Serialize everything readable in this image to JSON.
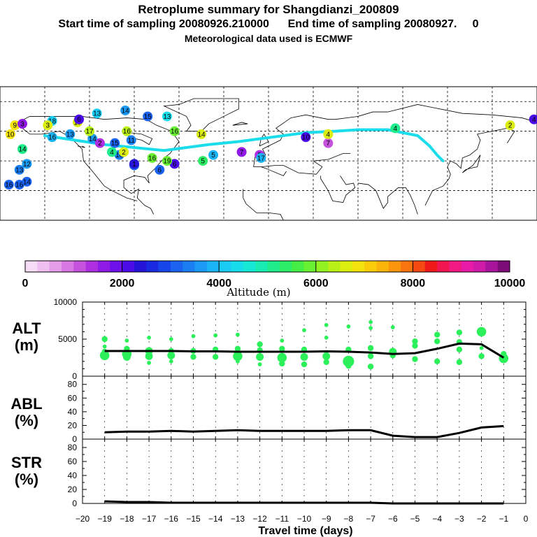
{
  "header": {
    "title": "Retroplume summary for Shangdianzi_200809",
    "sampling_line": "Start time of sampling 20080926.210000      End time of sampling 20080927.     0",
    "met_line": "Meteorological data used is ECMWF"
  },
  "colorbar": {
    "ticks": [
      "0",
      "2000",
      "4000",
      "6000",
      "8000",
      "10000"
    ],
    "label": "Altitude (m)",
    "colors": [
      "#f6dcf6",
      "#efbff0",
      "#e49be8",
      "#d878e2",
      "#c552dc",
      "#ad2fe0",
      "#8f1ae6",
      "#6e10ea",
      "#4a0de8",
      "#2514d8",
      "#1a2ae0",
      "#1646ea",
      "#1a62ef",
      "#1a7ef2",
      "#1a9af4",
      "#1ab4f5",
      "#1acbf3",
      "#17ddeb",
      "#15e8d4",
      "#19ecb2",
      "#1fec8a",
      "#2ced66",
      "#45ee45",
      "#6af033",
      "#92f222",
      "#b8f018",
      "#dced10",
      "#f4e20c",
      "#fbcc0a",
      "#fbb40a",
      "#fb960c",
      "#f8740e",
      "#f44a12",
      "#ee1a1a",
      "#f21650",
      "#f01a82",
      "#e81aa8",
      "#d01aa8",
      "#a8149c",
      "#7c0c78"
    ]
  },
  "map": {
    "trajectory_color": "#1adcea",
    "labels": [
      {
        "t": "13",
        "lon": -115,
        "lat": 72,
        "c": "#1acbf3"
      },
      {
        "t": "14",
        "lon": -96,
        "lat": 74,
        "c": "#1a9af4"
      },
      {
        "t": "15",
        "lon": -81,
        "lat": 70,
        "c": "#1a62ef"
      },
      {
        "t": "13",
        "lon": -68,
        "lat": 70,
        "c": "#17ddeb"
      },
      {
        "t": "9",
        "lon": -170,
        "lat": 64,
        "c": "#f4e20c"
      },
      {
        "t": "18",
        "lon": -145,
        "lat": 67,
        "c": "#1acbf3"
      },
      {
        "t": "17",
        "lon": -128,
        "lat": 66,
        "c": "#dced10"
      },
      {
        "t": "10",
        "lon": -173,
        "lat": 58,
        "c": "#f4e20c"
      },
      {
        "t": "16",
        "lon": -145,
        "lat": 56,
        "c": "#1ab4f5"
      },
      {
        "t": "13",
        "lon": -133,
        "lat": 58,
        "c": "#1a9af4"
      },
      {
        "t": "14",
        "lon": -118,
        "lat": 55,
        "c": "#1a9af4"
      },
      {
        "t": "15",
        "lon": -103,
        "lat": 52,
        "c": "#1a62ef"
      },
      {
        "t": "16",
        "lon": -100,
        "lat": 44,
        "c": "#1a7ef2"
      },
      {
        "t": "11",
        "lon": -92,
        "lat": 54,
        "c": "#1a7ef2"
      },
      {
        "t": "14",
        "lon": -165,
        "lat": 48,
        "c": "#1fec8a"
      },
      {
        "t": "12",
        "lon": -162,
        "lat": 38,
        "c": "#1a9af4"
      },
      {
        "t": "13",
        "lon": -167,
        "lat": 34,
        "c": "#1a7ef2"
      },
      {
        "t": "16",
        "lon": -174,
        "lat": 24,
        "c": "#1a62ef"
      },
      {
        "t": "16",
        "lon": -167,
        "lat": 24,
        "c": "#1a62ef"
      },
      {
        "t": "14",
        "lon": -162,
        "lat": 26,
        "c": "#1a62ef"
      },
      {
        "t": "9",
        "lon": -90,
        "lat": 37,
        "c": "#1a62ef"
      },
      {
        "t": "6",
        "lon": -73,
        "lat": 34,
        "c": "#1a62ef"
      },
      {
        "t": "6",
        "lon": -63,
        "lat": 38,
        "c": "#4a0de8"
      },
      {
        "t": "5",
        "lon": -44,
        "lat": 40,
        "c": "#2ced66"
      },
      {
        "t": "5",
        "lon": -37,
        "lat": 44,
        "c": "#1ab4f5"
      },
      {
        "t": "7",
        "lon": -18,
        "lat": 46,
        "c": "#8f1ae6"
      },
      {
        "t": "8",
        "lon": -6,
        "lat": 44,
        "c": "#ad2fe0"
      },
      {
        "t": "10",
        "lon": 25,
        "lat": 56,
        "c": "#4a0de8"
      },
      {
        "t": "7",
        "lon": 40,
        "lat": 52,
        "c": "#c552dc"
      },
      {
        "t": "4",
        "lon": 40,
        "lat": 58,
        "c": "#dced10"
      },
      {
        "t": "4",
        "lon": 85,
        "lat": 62,
        "c": "#1fec8a"
      },
      {
        "t": "2",
        "lon": 162,
        "lat": 64,
        "c": "#dced10"
      },
      {
        "t": "4",
        "lon": 178,
        "lat": 68,
        "c": "#4a0de8"
      },
      {
        "t": "3",
        "lon": -165,
        "lat": 65,
        "c": "#8f1ae6"
      },
      {
        "t": "3",
        "lon": -148,
        "lat": 64,
        "c": "#dced10"
      },
      {
        "t": "6",
        "lon": -127,
        "lat": 68,
        "c": "#4a0de8"
      },
      {
        "t": "2",
        "lon": -113,
        "lat": 52,
        "c": "#ad2fe0"
      },
      {
        "t": "2",
        "lon": -97,
        "lat": 46,
        "c": "#dced10"
      },
      {
        "t": "4",
        "lon": -105,
        "lat": 46,
        "c": "#1fec8a"
      },
      {
        "t": "1",
        "lon": -90,
        "lat": 38,
        "c": "#2514d8"
      },
      {
        "t": "17",
        "lon": -120,
        "lat": 60,
        "c": "#b8f018"
      },
      {
        "t": "16",
        "lon": -95,
        "lat": 60,
        "c": "#b8f018"
      },
      {
        "t": "16",
        "lon": -63,
        "lat": 60,
        "c": "#6af033"
      },
      {
        "t": "14",
        "lon": -45,
        "lat": 58,
        "c": "#dced10"
      },
      {
        "t": "16",
        "lon": -78,
        "lat": 42,
        "c": "#6af033"
      },
      {
        "t": "19",
        "lon": -68,
        "lat": 40,
        "c": "#6af033"
      },
      {
        "t": "17",
        "lon": -5,
        "lat": 42,
        "c": "#1ab4f5"
      }
    ]
  },
  "chart_data": [
    {
      "type": "scatter",
      "title": "ALT (m)",
      "ylabel": "ALT (m)",
      "ylim": [
        0,
        10000
      ],
      "yticks": [
        "0",
        "5000",
        "10000"
      ],
      "xlim": [
        -20,
        0
      ],
      "x_ticks": [
        "-20",
        "-19",
        "-18",
        "-17",
        "-16",
        "-15",
        "-14",
        "-13",
        "-12",
        "-11",
        "-10",
        "-9",
        "-8",
        "-7",
        "-6",
        "-5",
        "-4",
        "-3",
        "-2",
        "-1",
        "0"
      ],
      "xlabel": "Travel time (days)",
      "median_line": {
        "x": [
          -19,
          -18,
          -17,
          -16,
          -15,
          -14,
          -13,
          -12,
          -11,
          -10,
          -9,
          -8,
          -7,
          -6,
          -5,
          -4,
          -3,
          -2,
          -1
        ],
        "y": [
          3400,
          3400,
          3400,
          3400,
          3350,
          3350,
          3300,
          3300,
          3300,
          3300,
          3350,
          3300,
          3200,
          3000,
          3100,
          3700,
          4400,
          4300,
          2500
        ]
      },
      "points": [
        {
          "x": -19,
          "y": 5000,
          "s": 2
        },
        {
          "x": -19,
          "y": 4000,
          "s": 1
        },
        {
          "x": -19,
          "y": 3300,
          "s": 2
        },
        {
          "x": -19,
          "y": 2800,
          "s": 4
        },
        {
          "x": -18,
          "y": 4800,
          "s": 1
        },
        {
          "x": -18,
          "y": 3700,
          "s": 2
        },
        {
          "x": -18,
          "y": 3000,
          "s": 4
        },
        {
          "x": -18,
          "y": 2600,
          "s": 3
        },
        {
          "x": -17,
          "y": 5200,
          "s": 1
        },
        {
          "x": -17,
          "y": 3400,
          "s": 3
        },
        {
          "x": -17,
          "y": 2700,
          "s": 3
        },
        {
          "x": -17,
          "y": 1800,
          "s": 1
        },
        {
          "x": -16,
          "y": 5000,
          "s": 1
        },
        {
          "x": -16,
          "y": 3400,
          "s": 2
        },
        {
          "x": -16,
          "y": 2800,
          "s": 3
        },
        {
          "x": -16,
          "y": 2000,
          "s": 1
        },
        {
          "x": -15,
          "y": 5400,
          "s": 1
        },
        {
          "x": -15,
          "y": 3400,
          "s": 2
        },
        {
          "x": -15,
          "y": 2600,
          "s": 2
        },
        {
          "x": -14,
          "y": 5500,
          "s": 1
        },
        {
          "x": -14,
          "y": 3600,
          "s": 2
        },
        {
          "x": -14,
          "y": 2600,
          "s": 2
        },
        {
          "x": -13,
          "y": 5600,
          "s": 1
        },
        {
          "x": -13,
          "y": 3700,
          "s": 2
        },
        {
          "x": -13,
          "y": 2700,
          "s": 4
        },
        {
          "x": -13,
          "y": 2000,
          "s": 1
        },
        {
          "x": -12,
          "y": 4300,
          "s": 2
        },
        {
          "x": -12,
          "y": 3500,
          "s": 2
        },
        {
          "x": -12,
          "y": 2600,
          "s": 3
        },
        {
          "x": -12,
          "y": 1600,
          "s": 1
        },
        {
          "x": -11,
          "y": 4800,
          "s": 1
        },
        {
          "x": -11,
          "y": 3700,
          "s": 2
        },
        {
          "x": -11,
          "y": 2500,
          "s": 4
        },
        {
          "x": -11,
          "y": 1700,
          "s": 2
        },
        {
          "x": -10,
          "y": 6200,
          "s": 1
        },
        {
          "x": -10,
          "y": 3600,
          "s": 2
        },
        {
          "x": -10,
          "y": 2600,
          "s": 3
        },
        {
          "x": -10,
          "y": 1600,
          "s": 2
        },
        {
          "x": -9,
          "y": 6900,
          "s": 1
        },
        {
          "x": -9,
          "y": 5200,
          "s": 1
        },
        {
          "x": -9,
          "y": 2700,
          "s": 3
        },
        {
          "x": -9,
          "y": 1900,
          "s": 2
        },
        {
          "x": -8,
          "y": 6700,
          "s": 1
        },
        {
          "x": -8,
          "y": 3600,
          "s": 2
        },
        {
          "x": -8,
          "y": 2000,
          "s": 5
        },
        {
          "x": -8,
          "y": 1400,
          "s": 2
        },
        {
          "x": -7,
          "y": 7300,
          "s": 1
        },
        {
          "x": -7,
          "y": 6500,
          "s": 1
        },
        {
          "x": -7,
          "y": 3800,
          "s": 2
        },
        {
          "x": -7,
          "y": 2700,
          "s": 2
        },
        {
          "x": -7,
          "y": 1300,
          "s": 2
        },
        {
          "x": -6,
          "y": 6600,
          "s": 1
        },
        {
          "x": -6,
          "y": 3300,
          "s": 3
        },
        {
          "x": -6,
          "y": 2800,
          "s": 2
        },
        {
          "x": -5,
          "y": 4700,
          "s": 2
        },
        {
          "x": -5,
          "y": 4100,
          "s": 2
        },
        {
          "x": -5,
          "y": 2300,
          "s": 2
        },
        {
          "x": -4,
          "y": 5600,
          "s": 2
        },
        {
          "x": -4,
          "y": 4700,
          "s": 2
        },
        {
          "x": -4,
          "y": 2000,
          "s": 2
        },
        {
          "x": -3,
          "y": 5900,
          "s": 2
        },
        {
          "x": -3,
          "y": 4600,
          "s": 2
        },
        {
          "x": -3,
          "y": 3600,
          "s": 2
        },
        {
          "x": -3,
          "y": 1900,
          "s": 2
        },
        {
          "x": -2,
          "y": 6000,
          "s": 4
        },
        {
          "x": -2,
          "y": 3800,
          "s": 1
        },
        {
          "x": -2,
          "y": 2700,
          "s": 2
        },
        {
          "x": -1,
          "y": 3000,
          "s": 2
        },
        {
          "x": -1,
          "y": 2400,
          "s": 4
        }
      ]
    },
    {
      "type": "line",
      "title": "ABL (%)",
      "ylabel": "ABL (%)",
      "ylim": [
        0,
        90
      ],
      "yticks": [
        "0",
        "20",
        "40",
        "60",
        "80"
      ],
      "x": [
        -19,
        -18,
        -17,
        -16,
        -15,
        -14,
        -13,
        -12,
        -11,
        -10,
        -9,
        -8,
        -7,
        -6,
        -5,
        -4,
        -3,
        -2,
        -1
      ],
      "values": [
        10,
        11,
        11,
        12,
        11,
        12,
        13,
        12,
        12,
        12,
        12,
        13,
        13,
        5,
        3,
        3,
        9,
        17,
        19
      ]
    },
    {
      "type": "line",
      "title": "STR (%)",
      "ylabel": "STR (%)",
      "ylim": [
        0,
        90
      ],
      "yticks": [
        "0",
        "20",
        "40",
        "60",
        "80"
      ],
      "x": [
        -19,
        -18,
        -17,
        -16,
        -15,
        -14,
        -13,
        -12,
        -11,
        -10,
        -9,
        -8,
        -7,
        -6,
        -5,
        -4,
        -3,
        -2,
        -1
      ],
      "values": [
        3,
        2,
        2,
        1,
        1,
        1,
        1,
        1,
        1,
        1,
        1,
        1,
        1,
        0,
        0,
        0,
        0,
        0,
        0
      ]
    }
  ],
  "panel_labels": {
    "alt": [
      "ALT",
      "(m)"
    ],
    "abl": [
      "ABL",
      "(%)"
    ],
    "str": [
      "STR",
      "(%)"
    ]
  },
  "axis": {
    "xlabel": "Travel time (days)"
  }
}
